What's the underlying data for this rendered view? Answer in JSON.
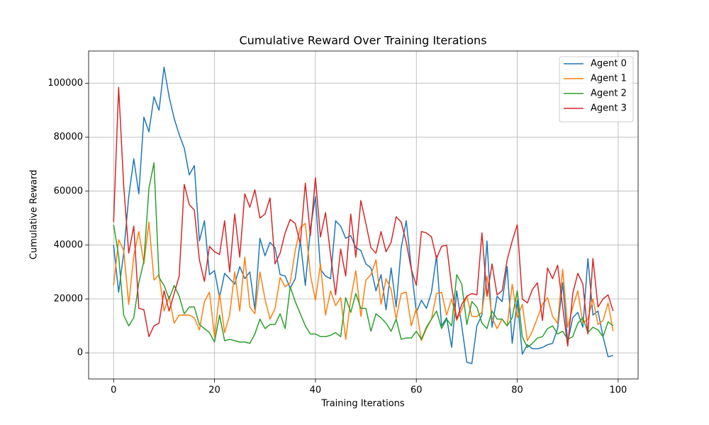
{
  "chart_data": {
    "type": "line",
    "title": "Cumulative Reward Over Training Iterations",
    "x_label": "Training Iterations",
    "y_label": "Cumulative Reward",
    "x": [
      0,
      1,
      2,
      3,
      4,
      5,
      6,
      7,
      8,
      9,
      10,
      11,
      12,
      13,
      14,
      15,
      16,
      17,
      18,
      19,
      20,
      21,
      22,
      23,
      24,
      25,
      26,
      27,
      28,
      29,
      30,
      31,
      32,
      33,
      34,
      35,
      36,
      37,
      38,
      39,
      40,
      41,
      42,
      43,
      44,
      45,
      46,
      47,
      48,
      49,
      50,
      51,
      52,
      53,
      54,
      55,
      56,
      57,
      58,
      59,
      60,
      61,
      62,
      63,
      64,
      65,
      66,
      67,
      68,
      69,
      70,
      71,
      72,
      73,
      74,
      75,
      76,
      77,
      78,
      79,
      80,
      81,
      82,
      83,
      84,
      85,
      86,
      87,
      88,
      89,
      90,
      91,
      92,
      93,
      94,
      95,
      96,
      97,
      98,
      99
    ],
    "series": [
      {
        "name": "Agent 0",
        "color": "#1f77b4",
        "values": [
          40000,
          22500,
          37000,
          58000,
          72000,
          59000,
          87500,
          82000,
          95000,
          90000,
          106000,
          95000,
          87000,
          81000,
          76000,
          66000,
          69500,
          41500,
          49000,
          29000,
          30500,
          20500,
          29500,
          27500,
          25500,
          32000,
          27500,
          30000,
          16000,
          42500,
          36000,
          41000,
          39000,
          29000,
          28500,
          24000,
          27500,
          41500,
          25000,
          46000,
          58000,
          31000,
          28500,
          27500,
          49000,
          47000,
          42500,
          43500,
          39000,
          38000,
          33000,
          31500,
          23000,
          29000,
          16000,
          31500,
          17000,
          39000,
          49000,
          31500,
          15000,
          19500,
          16500,
          22500,
          36000,
          10000,
          13000,
          2000,
          23000,
          10000,
          -3500,
          -4000,
          10000,
          14000,
          41500,
          9500,
          21000,
          19000,
          32000,
          3500,
          19500,
          -500,
          3000,
          1500,
          1500,
          2000,
          3000,
          3500,
          9000,
          26000,
          4000,
          13000,
          15000,
          9500,
          35000,
          14000,
          15500,
          6000,
          -1500,
          -1000
        ]
      },
      {
        "name": "Agent 1",
        "color": "#ff7f0e",
        "values": [
          25000,
          42000,
          38000,
          18000,
          36000,
          45000,
          33000,
          48500,
          27000,
          29000,
          15500,
          21000,
          11000,
          14000,
          14000,
          14000,
          13000,
          8500,
          19000,
          22500,
          6000,
          22000,
          7500,
          14000,
          30000,
          15500,
          35500,
          17000,
          14500,
          30000,
          20000,
          12500,
          16500,
          28000,
          24500,
          26000,
          38000,
          46500,
          48000,
          29000,
          19500,
          33000,
          14000,
          23000,
          17500,
          20500,
          5000,
          20000,
          30500,
          13500,
          27000,
          29000,
          34500,
          18000,
          27500,
          23500,
          12500,
          22000,
          22500,
          10000,
          16500,
          4500,
          9000,
          12500,
          22000,
          22500,
          14000,
          20000,
          12000,
          16000,
          21000,
          13500,
          13500,
          15000,
          28500,
          13000,
          9000,
          12500,
          10000,
          25500,
          13000,
          18000,
          4500,
          8000,
          13000,
          18000,
          20500,
          13500,
          11000,
          31000,
          9500,
          17000,
          23000,
          11000,
          12500,
          20000,
          10500,
          12000,
          18500,
          8000
        ]
      },
      {
        "name": "Agent 2",
        "color": "#2ca02c",
        "values": [
          47500,
          36000,
          14000,
          10000,
          13000,
          26000,
          34000,
          61000,
          70500,
          28000,
          25000,
          20000,
          25000,
          21000,
          14500,
          17000,
          17000,
          10500,
          9000,
          7500,
          4000,
          14000,
          4500,
          5000,
          4500,
          4000,
          4000,
          3500,
          7000,
          12500,
          9000,
          10500,
          10500,
          14500,
          9000,
          24500,
          19000,
          14500,
          10000,
          7000,
          7000,
          6000,
          6000,
          6500,
          7500,
          6000,
          20500,
          15000,
          22000,
          16500,
          16500,
          8000,
          14500,
          13000,
          11000,
          8000,
          12500,
          5000,
          5500,
          5500,
          8000,
          5000,
          9500,
          12500,
          15500,
          9000,
          12500,
          10000,
          29000,
          25500,
          10500,
          19000,
          17000,
          11000,
          9000,
          15500,
          12500,
          12500,
          10000,
          13000,
          23000,
          6000,
          2000,
          3500,
          5500,
          6000,
          9000,
          10000,
          7000,
          8000,
          5000,
          6000,
          11000,
          13000,
          7500,
          9500,
          8500,
          6000,
          11500,
          10000
        ]
      },
      {
        "name": "Agent 3",
        "color": "#d62728",
        "values": [
          48500,
          98500,
          62000,
          37000,
          47000,
          16500,
          16000,
          6000,
          10000,
          11000,
          23000,
          15500,
          22000,
          28500,
          62500,
          55000,
          53000,
          34500,
          26500,
          39500,
          37500,
          36500,
          49000,
          30000,
          51500,
          35500,
          59000,
          54000,
          60500,
          50000,
          51500,
          57500,
          33000,
          37000,
          44500,
          49500,
          48000,
          40500,
          63000,
          43500,
          65000,
          43000,
          52000,
          36500,
          21500,
          38500,
          28500,
          51500,
          35500,
          56500,
          48000,
          39000,
          37000,
          45000,
          37500,
          41000,
          50500,
          48500,
          41000,
          31000,
          25000,
          45000,
          44500,
          43000,
          35000,
          39500,
          40000,
          24500,
          12500,
          18000,
          21000,
          22000,
          21500,
          44500,
          21000,
          33000,
          21500,
          23000,
          34500,
          41500,
          47500,
          20000,
          18500,
          23500,
          26000,
          12000,
          31500,
          27500,
          32500,
          17000,
          2500,
          22000,
          29500,
          25500,
          7000,
          35000,
          17000,
          20000,
          21500,
          15500
        ]
      }
    ],
    "xlim": [
      -4.95,
      103.95
    ],
    "ylim": [
      -9700,
      112000
    ],
    "xticks": [
      0,
      20,
      40,
      60,
      80,
      100
    ],
    "yticks": [
      0,
      20000,
      40000,
      60000,
      80000,
      100000
    ],
    "grid": true,
    "legend": "upper right"
  }
}
